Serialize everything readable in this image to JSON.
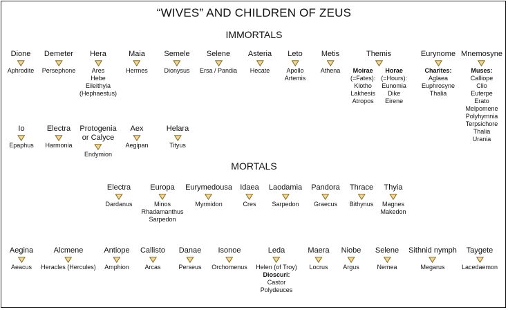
{
  "title": "“WIVES” AND CHILDREN OF ZEUS",
  "sections": {
    "immortals": "IMMORTALS",
    "mortals": "MORTALS"
  },
  "colors": {
    "arrow_fill": "#f0d9a0",
    "arrow_stroke": "#8a6a20"
  },
  "immortals_row1": [
    {
      "parent": [
        "Dione"
      ],
      "children": [
        "Aphrodite"
      ]
    },
    {
      "parent": [
        "Demeter"
      ],
      "children": [
        "Persephone"
      ]
    },
    {
      "parent": [
        "Hera"
      ],
      "children": [
        "Ares",
        "Hebe",
        "Eileithyia",
        "(Hephaestus)"
      ]
    },
    {
      "parent": [
        "Maia"
      ],
      "children": [
        "Hermes"
      ]
    },
    {
      "parent": [
        "Semele"
      ],
      "children": [
        "Dionysus"
      ]
    },
    {
      "parent": [
        "Selene"
      ],
      "children": [
        "Ersa / Pandia"
      ]
    },
    {
      "parent": [
        "Asteria"
      ],
      "children": [
        "Hecate"
      ]
    },
    {
      "parent": [
        "Leto"
      ],
      "children": [
        "Apollo",
        "Artemis"
      ]
    },
    {
      "parent": [
        "Metis"
      ],
      "children": [
        "Athena"
      ]
    },
    {
      "parent": [
        "Themis"
      ],
      "groups": [
        {
          "name": "Moirae",
          "lines": [
            "(=Fates):",
            "Klotho",
            "Lakhesis",
            "Atropos"
          ]
        },
        {
          "name": "Horae",
          "lines": [
            "(=Hours):",
            "Eunomia",
            "Dike",
            "Eirene"
          ]
        }
      ]
    },
    {
      "parent": [
        "Eurynome"
      ],
      "groups": [
        {
          "name": "Charites:",
          "lines": [
            "Aglaea",
            "Euphrosyne",
            "Thalia"
          ]
        }
      ]
    },
    {
      "parent": [
        "Mnemosyne"
      ],
      "groups": [
        {
          "name": "Muses:",
          "lines": [
            "Calliope",
            "Clio",
            "Euterpe",
            "Erato",
            "Melpomene",
            "Polyhymnia",
            "Terpsichore",
            "Thalia",
            "Urania"
          ]
        }
      ]
    }
  ],
  "immortals_row2": [
    {
      "parent": [
        "Io"
      ],
      "children": [
        "Epaphus"
      ]
    },
    {
      "parent": [
        "Electra"
      ],
      "children": [
        "Harmonia"
      ]
    },
    {
      "parent": [
        "Protogenia",
        "or Calyce"
      ],
      "children": [
        "Endymion"
      ]
    },
    {
      "parent": [
        "Aex"
      ],
      "children": [
        "Aegipan"
      ]
    },
    {
      "parent": [
        "Helara"
      ],
      "children": [
        "Tityus"
      ]
    }
  ],
  "mortals_row1": [
    {
      "parent": [
        "Electra"
      ],
      "children": [
        "Dardanus"
      ]
    },
    {
      "parent": [
        "Europa"
      ],
      "children": [
        "Minos",
        "Rhadamanthus",
        "Sarpedon"
      ]
    },
    {
      "parent": [
        "Eurymedousa"
      ],
      "children": [
        "Myrmidon"
      ]
    },
    {
      "parent": [
        "Idaea"
      ],
      "children": [
        "Cres"
      ]
    },
    {
      "parent": [
        "Laodamia"
      ],
      "children": [
        "Sarpedon"
      ]
    },
    {
      "parent": [
        "Pandora"
      ],
      "children": [
        "Graecus"
      ]
    },
    {
      "parent": [
        "Thrace"
      ],
      "children": [
        "Bithynus"
      ]
    },
    {
      "parent": [
        "Thyia"
      ],
      "children": [
        "Magnes",
        "Makedon"
      ]
    }
  ],
  "mortals_row2": [
    {
      "parent": [
        "Aegina"
      ],
      "children": [
        "Aeacus"
      ]
    },
    {
      "parent": [
        "Alcmene"
      ],
      "children": [
        "Heracles (Hercules)"
      ]
    },
    {
      "parent": [
        "Antiope"
      ],
      "children": [
        "Amphion"
      ]
    },
    {
      "parent": [
        "Callisto"
      ],
      "children": [
        "Arcas"
      ]
    },
    {
      "parent": [
        "Danae"
      ],
      "children": [
        "Perseus"
      ]
    },
    {
      "parent": [
        "Isonoe"
      ],
      "children": [
        "Orchomenus"
      ]
    },
    {
      "parent": [
        "Leda"
      ],
      "children": [
        "Helen (of Troy)"
      ],
      "groups": [
        {
          "name": "Dioscuri:",
          "lines": [
            "Castor",
            "Polydeuces"
          ]
        }
      ]
    },
    {
      "parent": [
        "Maera"
      ],
      "children": [
        "Locrus"
      ]
    },
    {
      "parent": [
        "Niobe"
      ],
      "children": [
        "Argus"
      ]
    },
    {
      "parent": [
        "Selene"
      ],
      "children": [
        "Nemea"
      ]
    },
    {
      "parent": [
        "Sithnid nymph"
      ],
      "children": [
        "Megarus"
      ]
    },
    {
      "parent": [
        "Taygete"
      ],
      "children": [
        "Lacedaemon"
      ]
    }
  ]
}
